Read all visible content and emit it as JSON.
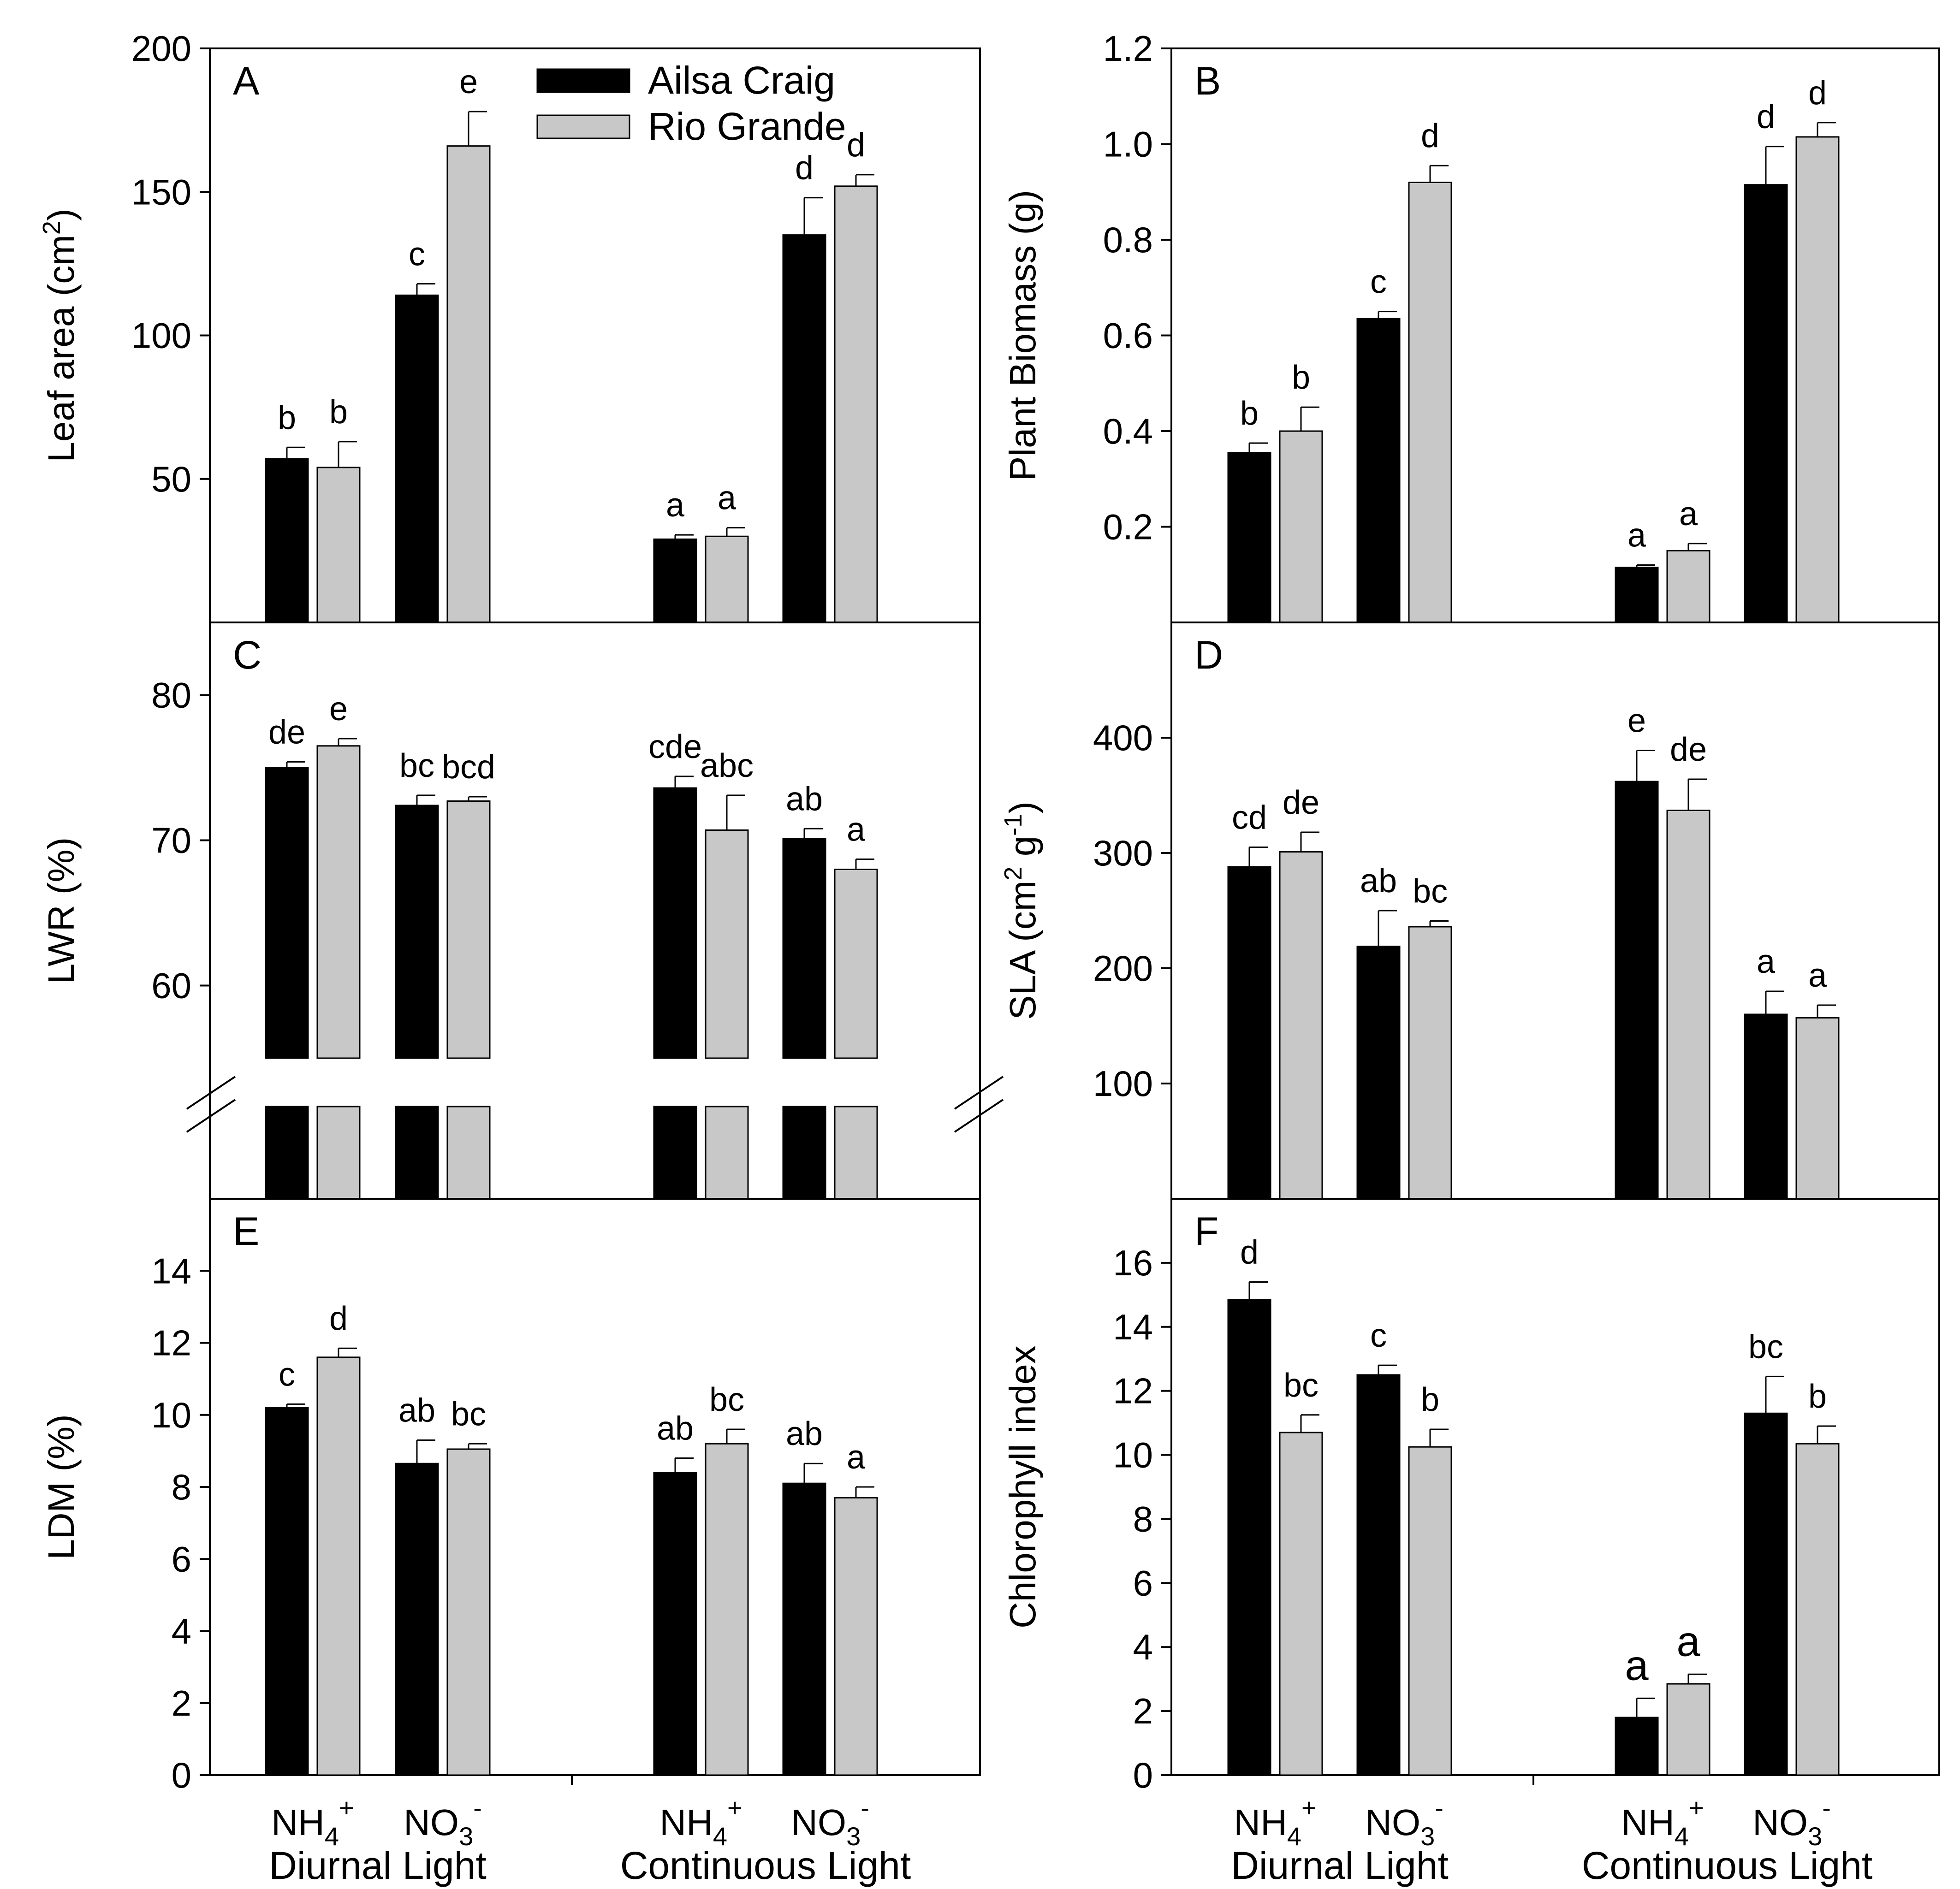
{
  "legend": {
    "series": [
      {
        "name": "Ailsa Craig",
        "color": "#000000"
      },
      {
        "name": "Rio Grande",
        "color": "#c8c8c8"
      }
    ]
  },
  "x_axis": {
    "categories": [
      {
        "main": "NH",
        "sub": "4",
        "sup": "+"
      },
      {
        "main": "NO",
        "sub": "3",
        "sup": "-"
      },
      {
        "main": "NH",
        "sub": "4",
        "sup": "+"
      },
      {
        "main": "NO",
        "sub": "3",
        "sup": "-"
      }
    ],
    "groups": [
      "Diurnal Light",
      "Continuous Light"
    ]
  },
  "chart_data": [
    {
      "panel": "A",
      "type": "bar",
      "ylabel": "Leaf area (cm",
      "ylabel_sup": "2",
      "ylabel_end": ")",
      "ylim": [
        0,
        200
      ],
      "yticks": [
        50,
        100,
        150,
        200
      ],
      "series": [
        {
          "name": "Ailsa Craig",
          "values": [
            57,
            114,
            29,
            135
          ],
          "errors": [
            4,
            4,
            1.5,
            13
          ],
          "letters": [
            "b",
            "c",
            "a",
            "d"
          ]
        },
        {
          "name": "Rio Grande",
          "values": [
            54,
            166,
            30,
            152
          ],
          "errors": [
            9,
            12,
            3,
            4
          ],
          "letters": [
            "b",
            "e",
            "a",
            "d"
          ]
        }
      ]
    },
    {
      "panel": "B",
      "type": "bar",
      "ylabel": "Plant Biomass (g)",
      "ylim": [
        0,
        1.2
      ],
      "yticks": [
        0.2,
        0.4,
        0.6,
        0.8,
        1.0,
        1.2
      ],
      "ytick_labels": [
        "0.2",
        "0.4",
        "0.6",
        "0.8",
        "1.0",
        "1.2"
      ],
      "series": [
        {
          "name": "Ailsa Craig",
          "values": [
            0.355,
            0.635,
            0.115,
            0.915
          ],
          "errors": [
            0.02,
            0.015,
            0.005,
            0.08
          ],
          "letters": [
            "b",
            "c",
            "a",
            "d"
          ]
        },
        {
          "name": "Rio Grande",
          "values": [
            0.4,
            0.92,
            0.15,
            1.015
          ],
          "errors": [
            0.05,
            0.035,
            0.015,
            0.03
          ],
          "letters": [
            "b",
            "d",
            "a",
            "d"
          ]
        }
      ]
    },
    {
      "panel": "C",
      "type": "bar",
      "ylabel": "LWR (%)",
      "ylim": [
        55,
        85
      ],
      "yticks": [
        60,
        70,
        80
      ],
      "axis_break": true,
      "series": [
        {
          "name": "Ailsa Craig",
          "values": [
            75.0,
            72.4,
            73.6,
            70.1
          ],
          "errors": [
            0.4,
            0.7,
            0.8,
            0.7
          ],
          "letters": [
            "de",
            "bc",
            "cde",
            "ab"
          ]
        },
        {
          "name": "Rio Grande",
          "values": [
            76.5,
            72.7,
            70.7,
            68.0
          ],
          "errors": [
            0.5,
            0.3,
            2.4,
            0.7
          ],
          "letters": [
            "e",
            "bcd",
            "abc",
            "a"
          ]
        }
      ]
    },
    {
      "panel": "D",
      "type": "bar",
      "ylabel": "SLA (cm",
      "ylabel_sup": "2",
      "ylabel_mid": " g",
      "ylabel_sup2": "-1",
      "ylabel_end": ")",
      "ylim": [
        0,
        500
      ],
      "yticks": [
        100,
        200,
        300,
        400
      ],
      "series": [
        {
          "name": "Ailsa Craig",
          "values": [
            288,
            219,
            362,
            160
          ],
          "errors": [
            17,
            31,
            27,
            20
          ],
          "letters": [
            "cd",
            "ab",
            "e",
            "a"
          ]
        },
        {
          "name": "Rio Grande",
          "values": [
            301,
            236,
            337,
            157
          ],
          "errors": [
            17,
            5,
            27,
            11
          ],
          "letters": [
            "de",
            "bc",
            "de",
            "a"
          ]
        }
      ]
    },
    {
      "panel": "E",
      "type": "bar",
      "ylabel": "LDM (%)",
      "ylim": [
        0,
        16
      ],
      "yticks": [
        0,
        2,
        4,
        6,
        8,
        10,
        12,
        14
      ],
      "series": [
        {
          "name": "Ailsa Craig",
          "values": [
            10.2,
            8.65,
            8.4,
            8.1
          ],
          "errors": [
            0.1,
            0.65,
            0.4,
            0.55
          ],
          "letters": [
            "c",
            "ab",
            "ab",
            "ab"
          ]
        },
        {
          "name": "Rio Grande",
          "values": [
            11.6,
            9.05,
            9.2,
            7.7
          ],
          "errors": [
            0.25,
            0.15,
            0.4,
            0.3
          ],
          "letters": [
            "d",
            "bc",
            "bc",
            "a"
          ]
        }
      ]
    },
    {
      "panel": "F",
      "type": "bar",
      "ylabel": "Chlorophyll index",
      "ylim": [
        0,
        18
      ],
      "yticks": [
        0,
        2,
        4,
        6,
        8,
        10,
        12,
        14,
        16
      ],
      "series": [
        {
          "name": "Ailsa Craig",
          "values": [
            14.85,
            12.5,
            1.8,
            11.3
          ],
          "errors": [
            0.55,
            0.3,
            0.6,
            1.15
          ],
          "letters": [
            "d",
            "c",
            "a",
            "bc"
          ]
        },
        {
          "name": "Rio Grande",
          "values": [
            10.7,
            10.25,
            2.85,
            10.35
          ],
          "errors": [
            0.55,
            0.55,
            0.3,
            0.55
          ],
          "letters": [
            "bc",
            "b",
            "a",
            "b"
          ]
        }
      ]
    }
  ]
}
